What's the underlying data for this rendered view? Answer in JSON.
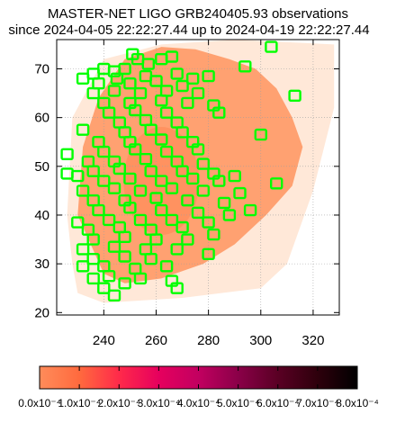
{
  "title": "MASTER-NET LIGO GRB240405.93 observations",
  "subtitle": "since 2024-04-05 22:22:27.44 up to 2024-04-19 22:22:27.44",
  "chart_data": {
    "type": "scatter",
    "title": "MASTER-NET LIGO GRB240405.93 observations",
    "subtitle": "since 2024-04-05 22:22:27.44 up to 2024-04-19 22:22:27.44",
    "xlabel": "",
    "ylabel": "",
    "xlim": [
      222,
      330
    ],
    "ylim": [
      19.5,
      76
    ],
    "x_ticks": [
      240,
      260,
      280,
      300,
      320
    ],
    "y_ticks": [
      20,
      30,
      40,
      50,
      60,
      70
    ],
    "grid": true,
    "colorbar": {
      "colors": [
        "#ff8c5a",
        "#ff6a3e",
        "#ff2a4a",
        "#e6005e",
        "#c20060",
        "#8a0048",
        "#5a0024",
        "#2e000c",
        "#000000"
      ],
      "tick_labels": [
        "0.0x10^-4",
        "1.0x10^-4",
        "2.0x10^-4",
        "3.0x10^-4",
        "4.0x10^-4",
        "5.0x10^-4",
        "6.0x10^-4",
        "7.0x10^-4",
        "8.0x10^-4"
      ]
    },
    "probability_region": {
      "outer_color": "#ffe8d8",
      "inner_color": "#ff9966",
      "dense_color": "#ff8c5a",
      "outer_polygon": [
        [
          228,
          30
        ],
        [
          226,
          40
        ],
        [
          228,
          60
        ],
        [
          240,
          72
        ],
        [
          262,
          75
        ],
        [
          290,
          76
        ],
        [
          328,
          75
        ],
        [
          328,
          62
        ],
        [
          320,
          45
        ],
        [
          310,
          30
        ],
        [
          300,
          25
        ],
        [
          270,
          23
        ],
        [
          240,
          22
        ],
        [
          230,
          24
        ]
      ],
      "inner_polygon": [
        [
          240,
          28
        ],
        [
          230,
          40
        ],
        [
          232,
          54
        ],
        [
          238,
          64
        ],
        [
          248,
          72
        ],
        [
          262,
          74.5
        ],
        [
          275,
          74
        ],
        [
          288,
          72
        ],
        [
          298,
          70
        ],
        [
          306,
          66
        ],
        [
          312,
          60
        ],
        [
          316,
          54
        ],
        [
          312,
          46
        ],
        [
          302,
          40
        ],
        [
          290,
          34
        ],
        [
          278,
          30
        ],
        [
          262,
          27
        ],
        [
          248,
          26
        ]
      ]
    },
    "observed_fields": {
      "color": "#00ff00",
      "points": [
        [
          304,
          74.5
        ],
        [
          251,
          73
        ],
        [
          253,
          72
        ],
        [
          262,
          72
        ],
        [
          266,
          72.5
        ],
        [
          257,
          71
        ],
        [
          294,
          70.5
        ],
        [
          240,
          70
        ],
        [
          236,
          69
        ],
        [
          244,
          69.5
        ],
        [
          248,
          70
        ],
        [
          232,
          68
        ],
        [
          245,
          68
        ],
        [
          256,
          68.5
        ],
        [
          268,
          69
        ],
        [
          274,
          68
        ],
        [
          280,
          68.5
        ],
        [
          238,
          67
        ],
        [
          250,
          67
        ],
        [
          260,
          67.5
        ],
        [
          270,
          66.5
        ],
        [
          236,
          65
        ],
        [
          244,
          65.5
        ],
        [
          254,
          65
        ],
        [
          264,
          65.5
        ],
        [
          276,
          65
        ],
        [
          313,
          64.5
        ],
        [
          240,
          63
        ],
        [
          250,
          63
        ],
        [
          262,
          63.5
        ],
        [
          272,
          63
        ],
        [
          282,
          62.5
        ],
        [
          242,
          61
        ],
        [
          252,
          61.5
        ],
        [
          264,
          61
        ],
        [
          284,
          61
        ],
        [
          246,
          59
        ],
        [
          256,
          59.5
        ],
        [
          268,
          59
        ],
        [
          248,
          57
        ],
        [
          258,
          57.5
        ],
        [
          270,
          57
        ],
        [
          232,
          57.5
        ],
        [
          300,
          56.5
        ],
        [
          238,
          55
        ],
        [
          250,
          55
        ],
        [
          262,
          55.5
        ],
        [
          274,
          55
        ],
        [
          240,
          53
        ],
        [
          252,
          53.5
        ],
        [
          264,
          53
        ],
        [
          276,
          53.5
        ],
        [
          226,
          52.5
        ],
        [
          234,
          51
        ],
        [
          244,
          51
        ],
        [
          256,
          51.5
        ],
        [
          268,
          51
        ],
        [
          278,
          50.5
        ],
        [
          236,
          49
        ],
        [
          246,
          49.5
        ],
        [
          258,
          49
        ],
        [
          270,
          49
        ],
        [
          282,
          48.5
        ],
        [
          290,
          48
        ],
        [
          226,
          48.5
        ],
        [
          230,
          48
        ],
        [
          240,
          47
        ],
        [
          250,
          47.5
        ],
        [
          262,
          47
        ],
        [
          274,
          47.5
        ],
        [
          284,
          47
        ],
        [
          306,
          46.5
        ],
        [
          232,
          45
        ],
        [
          244,
          45.5
        ],
        [
          254,
          45
        ],
        [
          266,
          45.5
        ],
        [
          278,
          45
        ],
        [
          292,
          44.5
        ],
        [
          236,
          43
        ],
        [
          248,
          43
        ],
        [
          260,
          43.5
        ],
        [
          272,
          43
        ],
        [
          286,
          42.5
        ],
        [
          296,
          41
        ],
        [
          238,
          41
        ],
        [
          250,
          41.5
        ],
        [
          262,
          41
        ],
        [
          276,
          40.5
        ],
        [
          288,
          40
        ],
        [
          230,
          38.5
        ],
        [
          242,
          39
        ],
        [
          254,
          39
        ],
        [
          266,
          39
        ],
        [
          280,
          38.5
        ],
        [
          234,
          37
        ],
        [
          246,
          37.5
        ],
        [
          258,
          37
        ],
        [
          270,
          37.5
        ],
        [
          282,
          36
        ],
        [
          236,
          35
        ],
        [
          248,
          35.5
        ],
        [
          260,
          35
        ],
        [
          272,
          35
        ],
        [
          232,
          33
        ],
        [
          244,
          33.5
        ],
        [
          256,
          33
        ],
        [
          268,
          33
        ],
        [
          280,
          32
        ],
        [
          236,
          31
        ],
        [
          248,
          31.5
        ],
        [
          258,
          31
        ],
        [
          232,
          29.5
        ],
        [
          240,
          29.5
        ],
        [
          252,
          29
        ],
        [
          264,
          29.5
        ],
        [
          242,
          27.5
        ],
        [
          254,
          27
        ],
        [
          266,
          26.5
        ],
        [
          236,
          27
        ],
        [
          240,
          25
        ],
        [
          244,
          23.5
        ],
        [
          248,
          26
        ],
        [
          268,
          25
        ]
      ]
    }
  }
}
